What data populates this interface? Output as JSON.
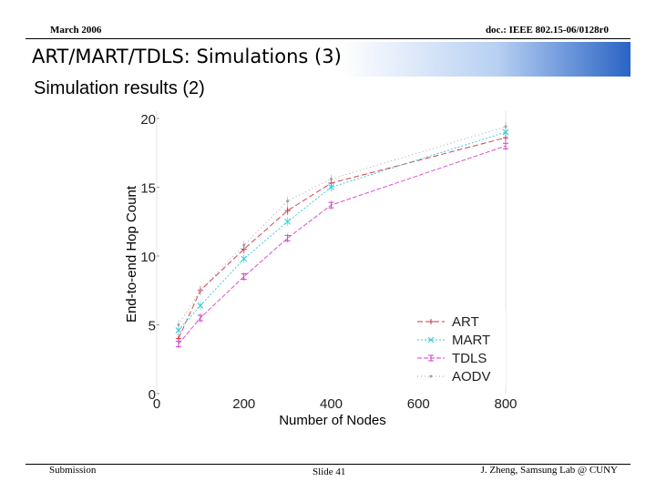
{
  "header": {
    "date": "March 2006",
    "doc": "doc.: IEEE 802.15-06/0128r0"
  },
  "slide": {
    "title": "ART/MART/TDLS: Simulations (3)",
    "subtitle": "Simulation results (2)"
  },
  "footer": {
    "left": "Submission",
    "center": "Slide 41",
    "right": "J. Zheng, Samsung Lab @ CUNY"
  },
  "chart_data": {
    "type": "line",
    "title": "",
    "xlabel": "Number of Nodes",
    "ylabel": "End-to-end Hop Count",
    "xlim": [
      0,
      800
    ],
    "ylim": [
      0,
      20
    ],
    "xticks": [
      0,
      200,
      400,
      600,
      800
    ],
    "yticks": [
      0,
      5,
      10,
      15,
      20
    ],
    "x": [
      50,
      100,
      200,
      300,
      400,
      800
    ],
    "grid": false,
    "legend_position": "bottom-right",
    "series": [
      {
        "name": "ART",
        "color": "#d03040",
        "marker": "+",
        "values": [
          4.0,
          7.5,
          10.5,
          13.3,
          15.3,
          18.6
        ]
      },
      {
        "name": "MART",
        "color": "#30c8d8",
        "marker": "x",
        "values": [
          4.6,
          6.4,
          9.8,
          12.5,
          15.0,
          19.0
        ]
      },
      {
        "name": "TDLS",
        "color": "#d040c8",
        "marker": "⊓",
        "values": [
          3.6,
          5.5,
          8.5,
          11.3,
          13.7,
          18.0
        ]
      },
      {
        "name": "AODV",
        "color": "#a0a0a8",
        "marker": "·",
        "values": [
          5.0,
          7.5,
          10.8,
          14.0,
          15.6,
          19.4
        ]
      }
    ]
  }
}
